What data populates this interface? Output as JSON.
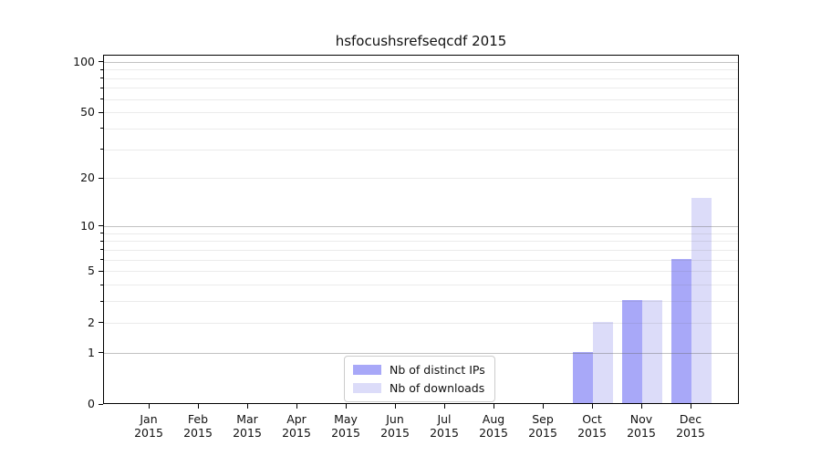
{
  "chart_data": {
    "type": "bar",
    "title": "hsfocushsrefseqcdf 2015",
    "x": {
      "months": [
        "Jan",
        "Feb",
        "Mar",
        "Apr",
        "May",
        "Jun",
        "Jul",
        "Aug",
        "Sep",
        "Oct",
        "Nov",
        "Dec"
      ],
      "year": "2015"
    },
    "series": [
      {
        "name": "Nb of distinct IPs",
        "color": "#a8a8f8",
        "values": [
          0,
          0,
          0,
          0,
          0,
          0,
          0,
          0,
          0,
          1,
          3,
          6
        ]
      },
      {
        "name": "Nb of downloads",
        "color": "#dcdcf9",
        "values": [
          0,
          0,
          0,
          0,
          0,
          0,
          0,
          0,
          0,
          2,
          3,
          15
        ]
      }
    ],
    "yscale": "log1p",
    "ylim": [
      0,
      110
    ],
    "yticks": [
      0,
      1,
      2,
      5,
      10,
      20,
      50,
      100
    ],
    "ytick_labels": [
      "0",
      "1",
      "2",
      "5",
      "10",
      "20",
      "50",
      "100"
    ],
    "major_gridlines": [
      1,
      10,
      100
    ],
    "minor_gridlines": [
      2,
      3,
      4,
      5,
      6,
      7,
      8,
      9,
      20,
      30,
      40,
      50,
      60,
      70,
      80,
      90
    ],
    "grid": true,
    "legend_position": "lower center"
  },
  "colors": {
    "background": "#ffffff",
    "spine": "#000000",
    "series1": "#a8a8f8",
    "series2": "#dcdcf9",
    "legend_border": "#cccccc",
    "text": "#111111"
  }
}
